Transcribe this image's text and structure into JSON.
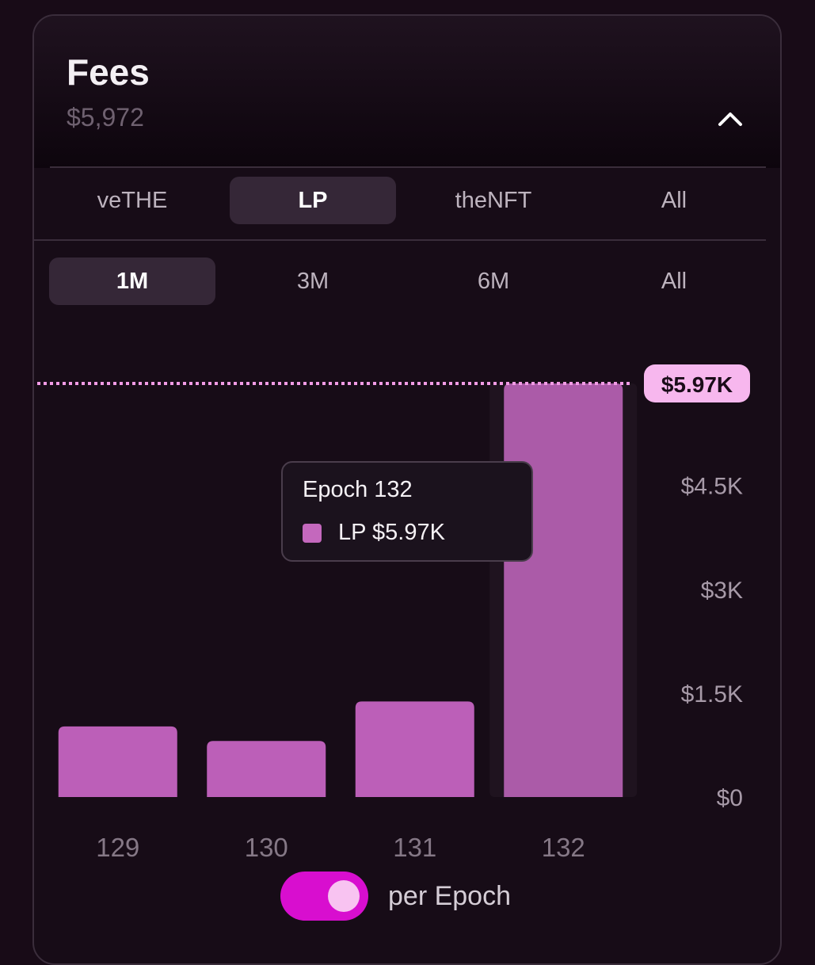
{
  "header": {
    "title": "Fees",
    "total": "$5,972"
  },
  "type_tabs": [
    {
      "label": "veTHE",
      "active": false
    },
    {
      "label": "LP",
      "active": true
    },
    {
      "label": "theNFT",
      "active": false
    },
    {
      "label": "All",
      "active": false
    }
  ],
  "range_tabs": [
    {
      "label": "1M",
      "active": true
    },
    {
      "label": "3M",
      "active": false
    },
    {
      "label": "6M",
      "active": false
    },
    {
      "label": "All",
      "active": false
    }
  ],
  "chart_data": {
    "type": "bar",
    "categories": [
      "129",
      "130",
      "131",
      "132"
    ],
    "series": [
      {
        "name": "LP",
        "values": [
          1020,
          810,
          1380,
          5972
        ]
      }
    ],
    "ylim": [
      0,
      5972
    ],
    "yticks": [
      {
        "value": 0,
        "label": "$0"
      },
      {
        "value": 1500,
        "label": "$1.5K"
      },
      {
        "value": 3000,
        "label": "$3K"
      },
      {
        "value": 4500,
        "label": "$4.5K"
      }
    ],
    "max_marker": {
      "value": 5972,
      "label": "$5.97K"
    },
    "highlighted_index": 3,
    "bar_color": "#bc5fb8",
    "highlight_color": "#ab5ba8"
  },
  "tooltip": {
    "title": "Epoch 132",
    "series_label": "LP $5.97K",
    "swatch_color": "#c468bd"
  },
  "toggle": {
    "label": "per Epoch",
    "on": true,
    "color": "#d80ecf"
  }
}
